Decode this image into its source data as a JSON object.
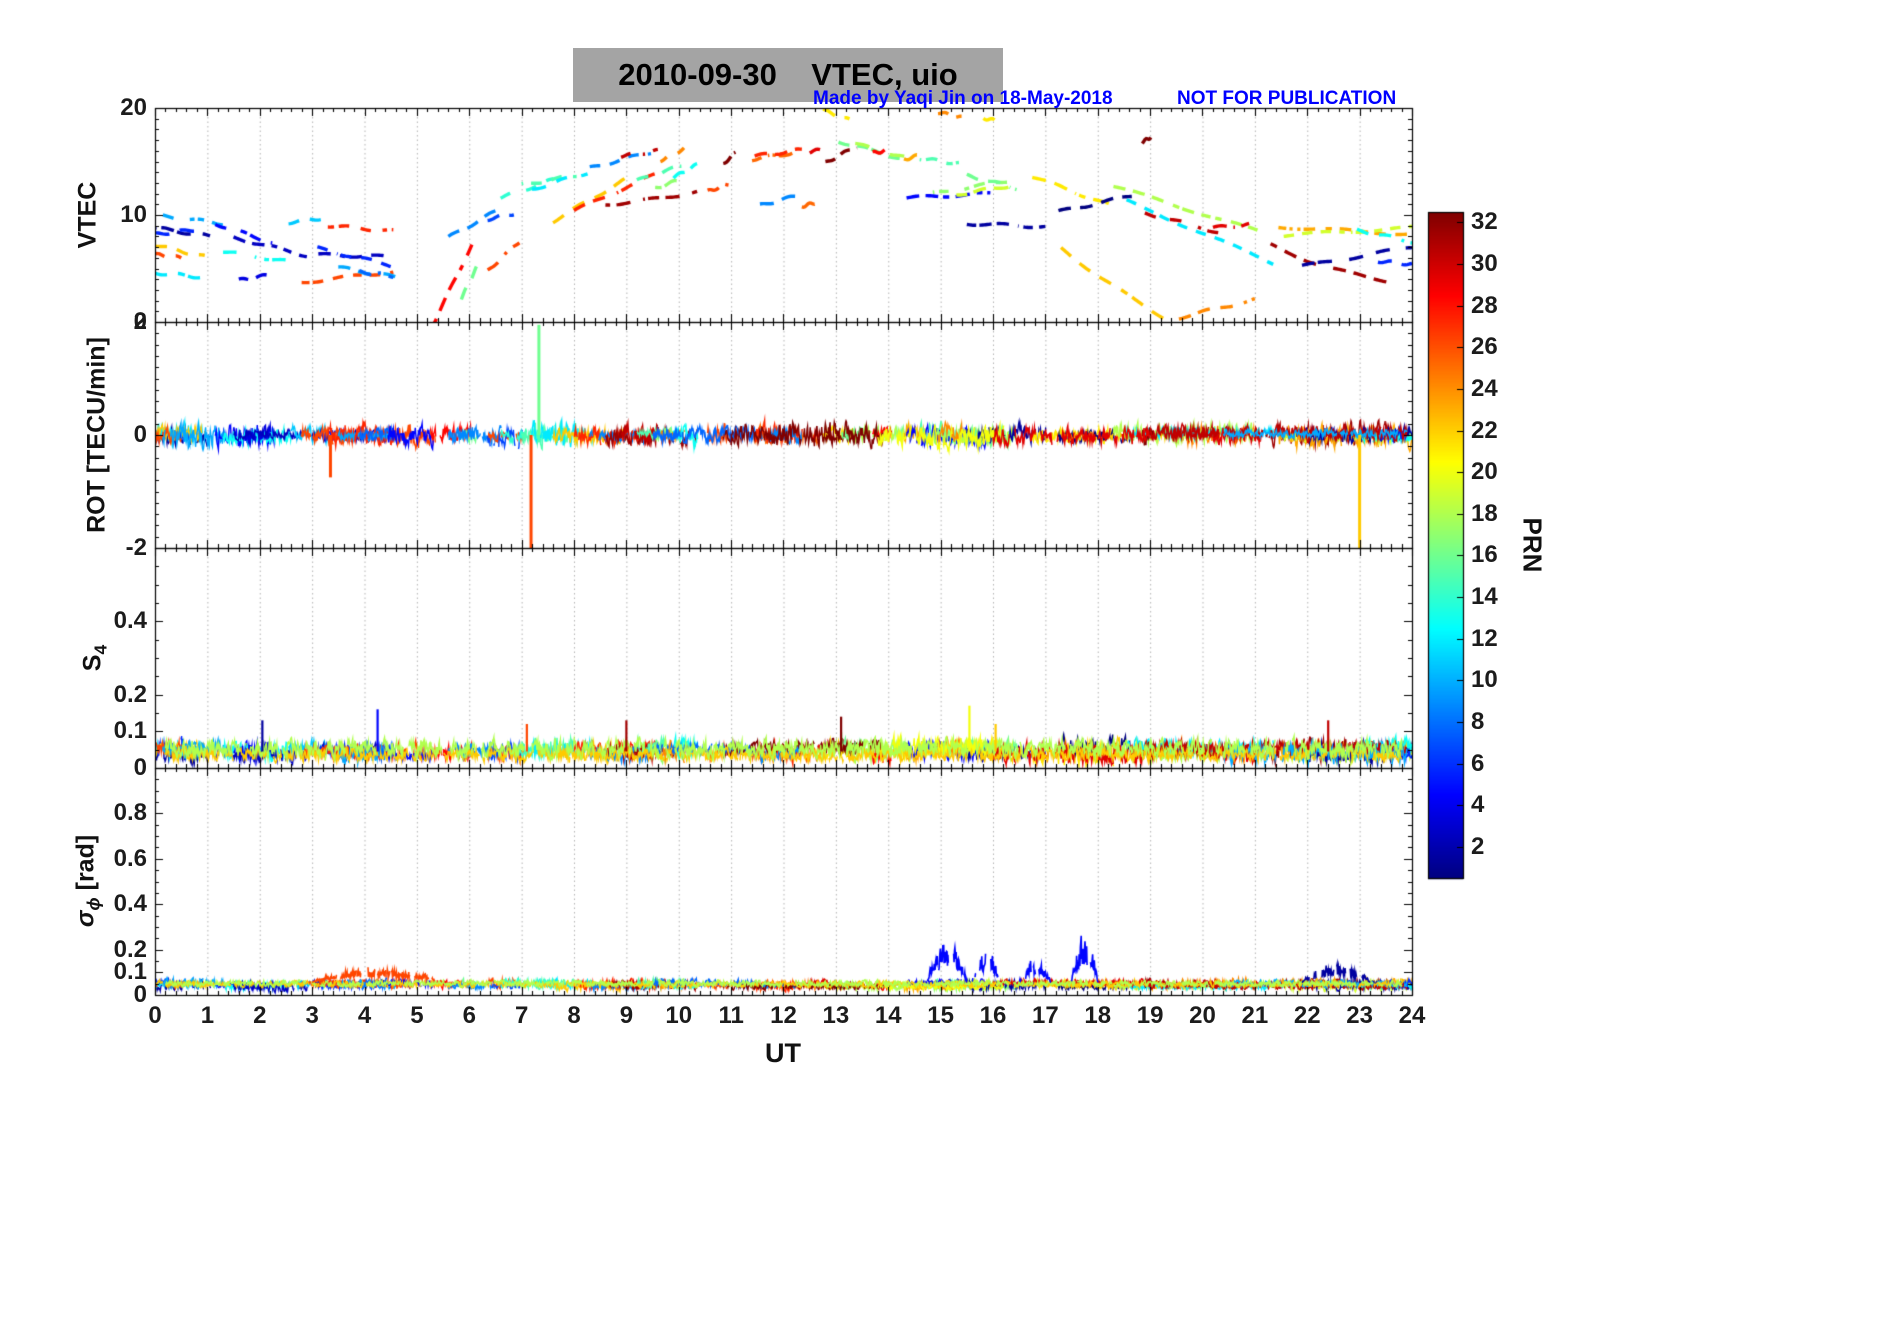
{
  "title": "2010-09-30    VTEC, uio",
  "credit": "Made by Yaqi Jin on 18-May-2018",
  "warning": "NOT FOR PUBLICATION",
  "colors": {
    "annotation": "#0000ff",
    "title_bg": "#a4a4a4",
    "grid": "rgba(0,0,0,0.3)",
    "axis": "#000000",
    "tick_text": "#1c1c1c"
  },
  "chart_data": {
    "type": "line",
    "xlabel": "UT",
    "x_range": [
      0,
      24
    ],
    "x_ticks": [
      0,
      1,
      2,
      3,
      4,
      5,
      6,
      7,
      8,
      9,
      10,
      11,
      12,
      13,
      14,
      15,
      16,
      17,
      18,
      19,
      20,
      21,
      22,
      23,
      24
    ],
    "colorbar": {
      "label": "PRN",
      "range": [
        1,
        32
      ],
      "ticks": [
        2,
        4,
        6,
        8,
        10,
        12,
        14,
        16,
        18,
        20,
        22,
        24,
        26,
        28,
        30,
        32
      ],
      "colormap": "jet"
    },
    "panels": [
      {
        "id": "vtec",
        "ylabel": "VTEC",
        "ymin": 0,
        "ymax": 20,
        "yticks": [
          "0",
          "10",
          "20"
        ],
        "yminor": 1
      },
      {
        "id": "rot",
        "ylabel": "ROT [TECU/min]",
        "ymin": -2,
        "ymax": 2,
        "yticks": [
          "-2",
          "0",
          "2"
        ],
        "yminor": 0.2
      },
      {
        "id": "s4",
        "ylabel_main": "S",
        "ylabel_sub": "4",
        "ymin": 0,
        "ymax": 0.6,
        "yticks": [
          "0",
          "0.1",
          "0.2",
          "0.4"
        ],
        "yminor": 0.05
      },
      {
        "id": "sigma",
        "ylabel_main": "σ",
        "ylabel_sub": "ϕ",
        "ylabel_suffix": " [rad]",
        "ymin": 0,
        "ymax": 1.0,
        "yticks": [
          "0",
          "0.1",
          "0.2",
          "0.4",
          "0.6",
          "0.8"
        ],
        "yminor": 0.05
      }
    ],
    "vtec_arcs": [
      {
        "prn": 2,
        "t": [
          0.0,
          1.05
        ],
        "v": [
          8.8,
          8.0
        ]
      },
      {
        "prn": 6,
        "t": [
          0.0,
          0.75
        ],
        "v": [
          8.2,
          8.6
        ]
      },
      {
        "prn": 12,
        "t": [
          0.0,
          0.9
        ],
        "v": [
          4.6,
          4.2
        ]
      },
      {
        "prn": 22,
        "t": [
          0.0,
          0.95
        ],
        "v": [
          7.2,
          6.1
        ]
      },
      {
        "prn": 26,
        "t": [
          0.0,
          0.5
        ],
        "v": [
          6.3,
          6.0
        ]
      },
      {
        "prn": 10,
        "t": [
          0.15,
          1.3
        ],
        "v": [
          9.9,
          9.2
        ]
      },
      {
        "prn": 5,
        "t": [
          1.15,
          2.3
        ],
        "v": [
          9.2,
          7.3
        ]
      },
      {
        "prn": 13,
        "t": [
          1.3,
          2.6
        ],
        "v": [
          6.6,
          5.6
        ]
      },
      {
        "prn": 4,
        "t": [
          1.6,
          2.2
        ],
        "v": [
          3.9,
          4.4
        ]
      },
      {
        "prn": 3,
        "t": [
          1.5,
          2.9
        ],
        "v": [
          7.9,
          6.2
        ]
      },
      {
        "prn": 11,
        "t": [
          2.55,
          3.35
        ],
        "v": [
          9.3,
          9.8
        ]
      },
      {
        "prn": 3,
        "t": [
          3.0,
          4.4
        ],
        "v": [
          6.3,
          6.1
        ]
      },
      {
        "prn": 6,
        "t": [
          3.1,
          4.5
        ],
        "v": [
          6.9,
          5.3
        ]
      },
      {
        "prn": 26,
        "t": [
          2.8,
          4.55
        ],
        "v": [
          3.7,
          4.7
        ]
      },
      {
        "prn": 27,
        "t": [
          3.3,
          4.55
        ],
        "v": [
          9.0,
          8.5
        ]
      },
      {
        "prn": 10,
        "t": [
          3.5,
          4.6
        ],
        "v": [
          5.1,
          4.2
        ]
      },
      {
        "prn": 8,
        "t": [
          3.9,
          4.55
        ],
        "v": [
          4.7,
          4.3
        ]
      },
      {
        "prn": 28,
        "t": [
          5.25,
          6.05
        ],
        "v": [
          -0.8,
          7.2
        ]
      },
      {
        "prn": 16,
        "t": [
          5.85,
          6.15
        ],
        "v": [
          2.2,
          5.2
        ]
      },
      {
        "prn": 9,
        "t": [
          5.6,
          6.6
        ],
        "v": [
          7.9,
          10.6
        ]
      },
      {
        "prn": 26,
        "t": [
          6.35,
          7.05
        ],
        "v": [
          4.8,
          7.9
        ]
      },
      {
        "prn": 7,
        "t": [
          6.35,
          7.0
        ],
        "v": [
          9.6,
          10.3
        ]
      },
      {
        "prn": 14,
        "t": [
          6.6,
          7.6
        ],
        "v": [
          11.6,
          13.3
        ]
      },
      {
        "prn": 15,
        "t": [
          7.0,
          8.05
        ],
        "v": [
          12.8,
          13.7
        ]
      },
      {
        "prn": 12,
        "t": [
          7.2,
          8.35
        ],
        "v": [
          12.4,
          14.1
        ]
      },
      {
        "prn": 22,
        "t": [
          7.6,
          9.0
        ],
        "v": [
          9.4,
          13.4
        ]
      },
      {
        "prn": 27,
        "t": [
          8.0,
          9.6
        ],
        "v": [
          10.4,
          13.9
        ]
      },
      {
        "prn": 9,
        "t": [
          8.3,
          9.5
        ],
        "v": [
          14.4,
          15.9
        ]
      },
      {
        "prn": 31,
        "t": [
          8.6,
          10.35
        ],
        "v": [
          11.0,
          12.2
        ],
        "vm": 11.3
      },
      {
        "prn": 30,
        "t": [
          8.9,
          9.6
        ],
        "v": [
          15.5,
          16.0
        ]
      },
      {
        "prn": 15,
        "t": [
          9.2,
          10.05
        ],
        "v": [
          13.2,
          14.6
        ]
      },
      {
        "prn": 17,
        "t": [
          9.55,
          10.1
        ],
        "v": [
          12.5,
          13.4
        ]
      },
      {
        "prn": 24,
        "t": [
          9.65,
          10.1
        ],
        "v": [
          15.1,
          16.2
        ]
      },
      {
        "prn": 13,
        "t": [
          9.9,
          10.35
        ],
        "v": [
          13.5,
          14.7
        ]
      },
      {
        "prn": 26,
        "t": [
          10.55,
          10.95
        ],
        "v": [
          12.2,
          12.9
        ]
      },
      {
        "prn": 32,
        "t": [
          10.85,
          11.2
        ],
        "v": [
          14.8,
          16.3
        ]
      },
      {
        "prn": 25,
        "t": [
          11.4,
          12.3
        ],
        "v": [
          15.2,
          15.9
        ]
      },
      {
        "prn": 27,
        "t": [
          11.45,
          12.35
        ],
        "v": [
          15.5,
          16.1
        ]
      },
      {
        "prn": 9,
        "t": [
          11.55,
          12.35
        ],
        "v": [
          10.9,
          11.9
        ]
      },
      {
        "prn": 25,
        "t": [
          12.35,
          12.65
        ],
        "v": [
          10.8,
          11.2
        ]
      },
      {
        "prn": 29,
        "t": [
          12.5,
          12.95
        ],
        "v": [
          15.9,
          16.3
        ]
      },
      {
        "prn": 21,
        "t": [
          12.75,
          13.35
        ],
        "v": [
          19.8,
          18.7
        ]
      },
      {
        "prn": 32,
        "t": [
          12.8,
          13.4
        ],
        "v": [
          14.9,
          16.4
        ]
      },
      {
        "prn": 16,
        "t": [
          13.05,
          14.3
        ],
        "v": [
          16.9,
          15.2
        ]
      },
      {
        "prn": 18,
        "t": [
          13.25,
          14.45
        ],
        "v": [
          16.8,
          15.2
        ]
      },
      {
        "prn": 28,
        "t": [
          13.7,
          14.05
        ],
        "v": [
          15.8,
          16.1
        ]
      },
      {
        "prn": 23,
        "t": [
          14.3,
          14.7
        ],
        "v": [
          15.2,
          15.7
        ]
      },
      {
        "prn": 15,
        "t": [
          14.6,
          15.35
        ],
        "v": [
          15.3,
          14.8
        ]
      },
      {
        "prn": 5,
        "t": [
          14.35,
          15.95
        ],
        "v": [
          11.6,
          12.0
        ]
      },
      {
        "prn": 17,
        "t": [
          14.85,
          16.3
        ],
        "v": [
          12.0,
          13.2
        ]
      },
      {
        "prn": 19,
        "t": [
          15.3,
          16.4
        ],
        "v": [
          11.9,
          12.8
        ]
      },
      {
        "prn": 24,
        "t": [
          14.95,
          15.4
        ],
        "v": [
          19.6,
          19.1
        ]
      },
      {
        "prn": 21,
        "t": [
          15.7,
          16.05
        ],
        "v": [
          19.2,
          18.8
        ]
      },
      {
        "prn": 16,
        "t": [
          15.5,
          16.45
        ],
        "v": [
          13.7,
          12.5
        ]
      },
      {
        "prn": 2,
        "t": [
          15.5,
          17.0
        ],
        "v": [
          9.2,
          8.9
        ]
      },
      {
        "prn": 21,
        "t": [
          16.75,
          18.3
        ],
        "v": [
          13.6,
          10.8
        ]
      },
      {
        "prn": 1,
        "t": [
          17.25,
          18.65
        ],
        "v": [
          10.3,
          11.8
        ]
      },
      {
        "prn": 22,
        "t": [
          17.3,
          19.35
        ],
        "v": [
          6.9,
          0.2
        ],
        "vm": 3.0
      },
      {
        "prn": 24,
        "t": [
          19.55,
          21.0
        ],
        "v": [
          0.4,
          2.1
        ]
      },
      {
        "prn": 18,
        "t": [
          18.3,
          21.05
        ],
        "v": [
          12.7,
          8.5
        ]
      },
      {
        "prn": 12,
        "t": [
          18.55,
          21.35
        ],
        "v": [
          11.3,
          5.5
        ]
      },
      {
        "prn": 30,
        "t": [
          18.9,
          20.3
        ],
        "v": [
          10.2,
          8.4
        ]
      },
      {
        "prn": 32,
        "t": [
          18.85,
          19.05
        ],
        "v": [
          16.8,
          17.4
        ]
      },
      {
        "prn": 29,
        "t": [
          20.2,
          21.1
        ],
        "v": [
          8.8,
          9.2
        ]
      },
      {
        "prn": 31,
        "t": [
          21.3,
          23.6
        ],
        "v": [
          7.2,
          3.8
        ],
        "vm": 4.6
      },
      {
        "prn": 23,
        "t": [
          21.45,
          24.0
        ],
        "v": [
          8.9,
          8.2
        ]
      },
      {
        "prn": 19,
        "t": [
          21.55,
          24.0
        ],
        "v": [
          8.1,
          8.8
        ]
      },
      {
        "prn": 2,
        "t": [
          21.9,
          24.0
        ],
        "v": [
          5.2,
          7.0
        ]
      },
      {
        "prn": 13,
        "t": [
          22.95,
          24.0
        ],
        "v": [
          8.6,
          7.5
        ]
      },
      {
        "prn": 6,
        "t": [
          23.35,
          24.0
        ],
        "v": [
          5.7,
          5.4
        ]
      }
    ],
    "noise_extra_segments": [
      {
        "prn": 26,
        "t": [
          4.5,
          5.35
        ],
        "use": [
          "rot",
          "s4",
          "sigma"
        ]
      },
      {
        "prn": 5,
        "t": [
          4.45,
          5.3
        ],
        "use": [
          "rot",
          "s4",
          "sigma"
        ]
      },
      {
        "prn": 8,
        "t": [
          9.5,
          11.5
        ],
        "use": [
          "rot",
          "s4",
          "sigma"
        ]
      },
      {
        "prn": 32,
        "t": [
          11.0,
          13.9
        ],
        "use": [
          "rot",
          "s4",
          "sigma"
        ]
      },
      {
        "prn": 20,
        "t": [
          13.8,
          16.2
        ],
        "use": [
          "rot",
          "s4",
          "sigma"
        ]
      },
      {
        "prn": 29,
        "t": [
          16.0,
          19.0
        ],
        "use": [
          "rot",
          "s4",
          "sigma"
        ]
      },
      {
        "prn": 30,
        "t": [
          19.0,
          23.9
        ],
        "use": [
          "rot",
          "s4",
          "sigma"
        ]
      },
      {
        "prn": 10,
        "t": [
          20.4,
          23.9
        ],
        "use": [
          "rot",
          "s4",
          "sigma"
        ]
      },
      {
        "prn": 22,
        "t": [
          0.2,
          23.8
        ],
        "use": [
          "s4",
          "sigma"
        ]
      },
      {
        "prn": 18,
        "t": [
          0.2,
          23.8
        ],
        "use": [
          "s4",
          "sigma"
        ]
      }
    ],
    "rot": {
      "typical_noise_amp": 0.15,
      "spikes": [
        {
          "prn": 16,
          "t": 7.33,
          "value": 1.95
        },
        {
          "prn": 26,
          "t": 7.18,
          "value": -2.0
        },
        {
          "prn": 26,
          "t": 3.35,
          "value": -0.75
        },
        {
          "prn": 22,
          "t": 23.0,
          "value": -2.0
        }
      ]
    },
    "s4": {
      "baseline": 0.05,
      "typical_noise_amp": 0.025,
      "spikes": [
        {
          "prn": 5,
          "t": 4.25,
          "value": 0.16
        },
        {
          "prn": 2,
          "t": 2.05,
          "value": 0.13
        },
        {
          "prn": 26,
          "t": 7.1,
          "value": 0.12
        },
        {
          "prn": 31,
          "t": 9.0,
          "value": 0.13
        },
        {
          "prn": 32,
          "t": 13.1,
          "value": 0.14
        },
        {
          "prn": 20,
          "t": 15.55,
          "value": 0.17
        },
        {
          "prn": 22,
          "t": 16.05,
          "value": 0.12
        },
        {
          "prn": 30,
          "t": 22.4,
          "value": 0.13
        }
      ]
    },
    "sigma_phi": {
      "baseline": 0.05,
      "typical_noise_amp": 0.02,
      "bursts": [
        {
          "prn": 5,
          "t": [
            14.75,
            15.5
          ],
          "peak": 0.22
        },
        {
          "prn": 5,
          "t": [
            15.6,
            16.15
          ],
          "peak": 0.17
        },
        {
          "prn": 5,
          "t": [
            16.5,
            17.1
          ],
          "peak": 0.12
        },
        {
          "prn": 5,
          "t": [
            17.5,
            18.0
          ],
          "peak": 0.26
        },
        {
          "prn": 26,
          "t": [
            3.0,
            5.5
          ],
          "peak": 0.08
        },
        {
          "prn": 2,
          "t": [
            21.9,
            23.2
          ],
          "peak": 0.1
        }
      ]
    }
  }
}
